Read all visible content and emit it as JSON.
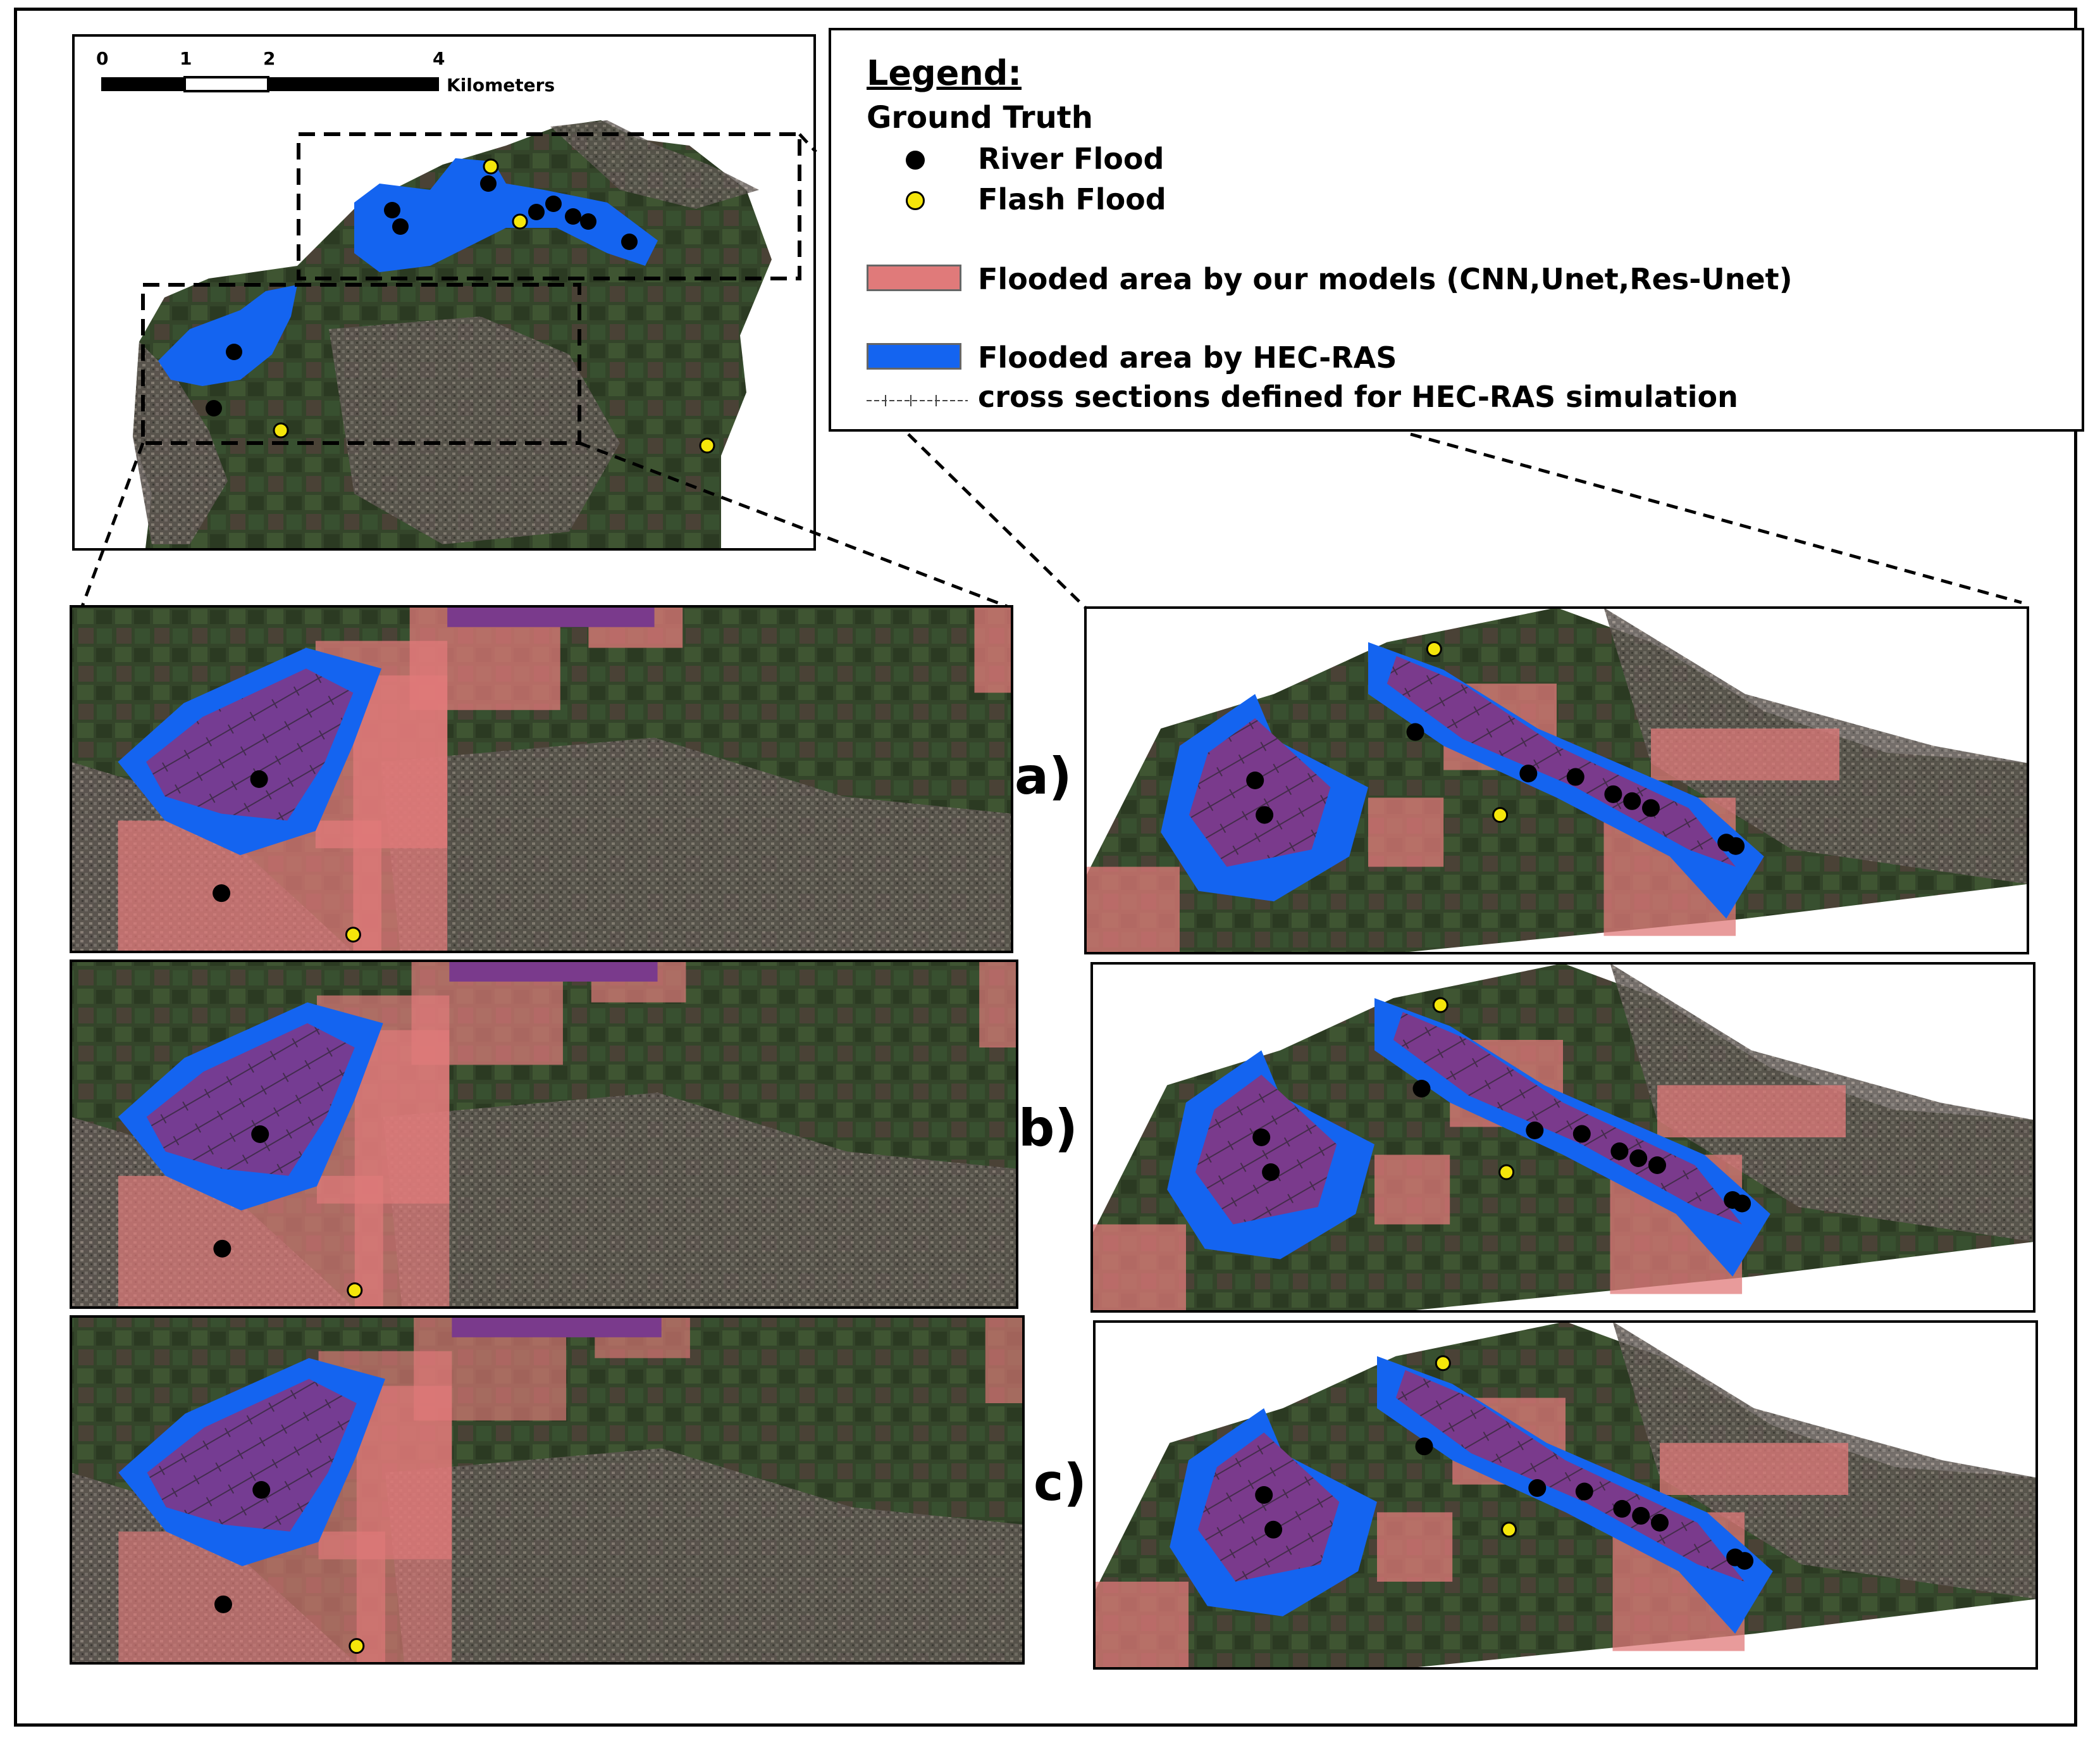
{
  "legend": {
    "title": "Legend:",
    "subtitle": "Ground Truth",
    "river_flood": "River Flood",
    "flash_flood": "Flash Flood",
    "model_flood": "Flooded area by our models (CNN,Unet,Res-Unet)",
    "hecras_flood": "Flooded area by HEC-RAS",
    "cross_sections": "cross sections defined for HEC-RAS simulation"
  },
  "scale_bar": {
    "ticks": [
      "0",
      "1",
      "2",
      "4"
    ],
    "unit": "Kilometers"
  },
  "panels": {
    "a": "a)",
    "b": "b)",
    "c": "c)"
  },
  "colors": {
    "river_flood_dot": "#000000",
    "flash_flood_dot": "#f5e60a",
    "model_flood": "#e07a7a",
    "hecras_flood": "#1464f0",
    "overlap": "#7a3a8c",
    "satellite_bg": "#3a4a2e"
  }
}
